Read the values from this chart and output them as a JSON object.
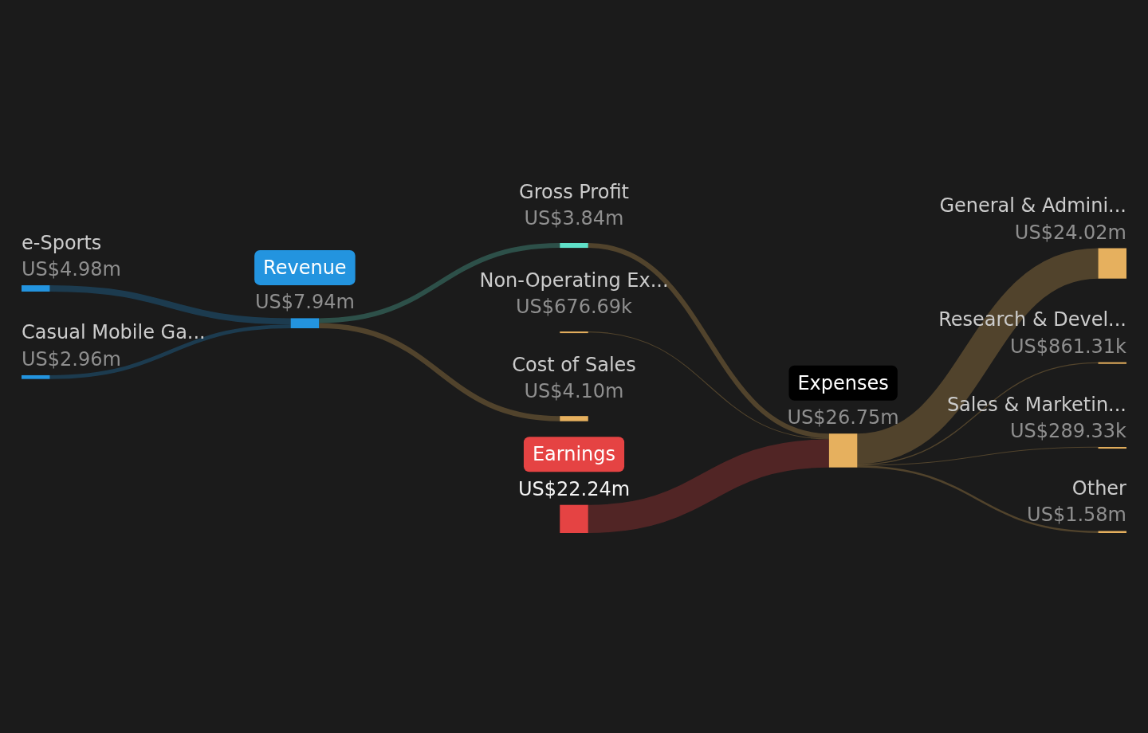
{
  "chart_data": {
    "type": "other",
    "categories": [
      "e-Sports",
      "Casual Mobile Ga...",
      "Revenue",
      "Gross Profit",
      "Non-Operating Ex...",
      "Cost of Sales",
      "Earnings",
      "Expenses",
      "General & Admini...",
      "Research & Devel...",
      "Sales & Marketin...",
      "Other"
    ],
    "values": [
      4980000,
      2960000,
      7940000,
      3840000,
      676690,
      4100000,
      22240000,
      26750000,
      24020000,
      861310,
      289330,
      1580000
    ],
    "value_labels": [
      "US$4.98m",
      "US$2.96m",
      "US$7.94m",
      "US$3.84m",
      "US$676.69k",
      "US$4.10m",
      "US$22.24m",
      "US$26.75m",
      "US$24.02m",
      "US$861.31k",
      "US$289.33k",
      "US$1.58m"
    ],
    "colors": [
      "#2394df",
      "#2394df",
      "#2394df",
      "#5fe0c8",
      "#e6b05e",
      "#e6b05e",
      "#e54343",
      "#e6b05e",
      "#e6b05e",
      "#e6b05e",
      "#e6b05e",
      "#e6b05e"
    ],
    "cells": [
      [
        null,
        null,
        true,
        null,
        null,
        null,
        null,
        null,
        null,
        null,
        null,
        null
      ],
      [
        null,
        null,
        true,
        null,
        null,
        null,
        null,
        null,
        null,
        null,
        null,
        null
      ],
      [
        null,
        null,
        null,
        true,
        null,
        true,
        null,
        null,
        null,
        null,
        null,
        null
      ],
      [
        null,
        null,
        null,
        null,
        null,
        null,
        null,
        true,
        null,
        null,
        null,
        null
      ],
      [
        null,
        null,
        null,
        null,
        null,
        null,
        null,
        true,
        null,
        null,
        null,
        null
      ],
      [
        null,
        null,
        null,
        null,
        null,
        null,
        null,
        null,
        null,
        null,
        null,
        null
      ],
      [
        null,
        null,
        null,
        null,
        null,
        null,
        null,
        true,
        null,
        null,
        null,
        null
      ],
      [
        null,
        null,
        null,
        null,
        null,
        null,
        null,
        null,
        true,
        true,
        true,
        true
      ],
      [
        null,
        null,
        null,
        null,
        null,
        null,
        null,
        null,
        null,
        null,
        null,
        null
      ],
      [
        null,
        null,
        null,
        null,
        null,
        null,
        null,
        null,
        null,
        null,
        null,
        null
      ],
      [
        null,
        null,
        null,
        null,
        null,
        null,
        null,
        null,
        null,
        null,
        null,
        null
      ],
      [
        null,
        null,
        null,
        null,
        null,
        null,
        null,
        null,
        null,
        null,
        null,
        null
      ]
    ]
  }
}
